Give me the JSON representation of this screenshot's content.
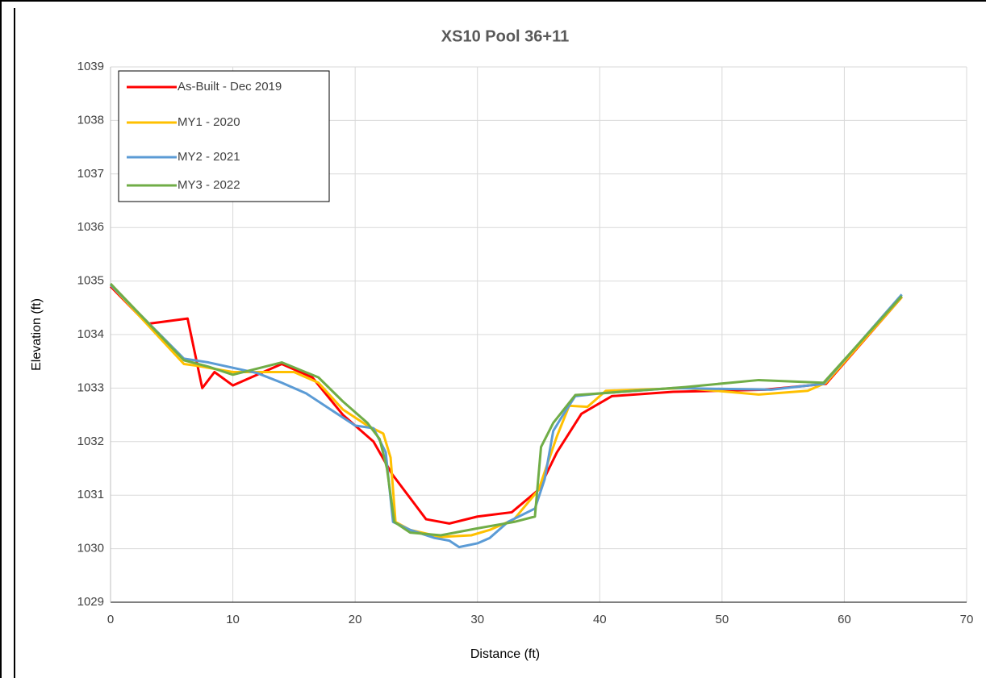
{
  "chart_data": {
    "type": "line",
    "title": "XS10 Pool 36+11",
    "xlabel": "Distance (ft)",
    "ylabel": "Elevation (ft)",
    "xlim": [
      0,
      70
    ],
    "xticks": [
      0,
      10,
      20,
      30,
      40,
      50,
      60,
      70
    ],
    "ylim": [
      1029,
      1039
    ],
    "yticks": [
      1029,
      1030,
      1031,
      1032,
      1033,
      1034,
      1035,
      1036,
      1037,
      1038,
      1039
    ],
    "grid": true,
    "legend": "upper left",
    "series": [
      {
        "name": "As-Built - Dec 2019",
        "color": "#ff0000",
        "x": [
          0,
          3,
          6.3,
          7.5,
          8.5,
          10,
          12,
          14,
          16.5,
          19,
          21.5,
          23,
          25.8,
          27.7,
          30,
          32.8,
          35,
          36.5,
          38.5,
          41,
          46,
          53.5,
          58.5,
          64.7
        ],
        "values": [
          1034.9,
          1034.2,
          1034.3,
          1033.0,
          1033.3,
          1033.05,
          1033.25,
          1033.45,
          1033.2,
          1032.5,
          1032.0,
          1031.4,
          1030.55,
          1030.47,
          1030.6,
          1030.68,
          1031.1,
          1031.8,
          1032.52,
          1032.85,
          1032.93,
          1032.97,
          1033.08,
          1034.7
        ]
      },
      {
        "name": "MY1 - 2020",
        "color": "#ffc000",
        "x": [
          0,
          6,
          7,
          10,
          15,
          17,
          19,
          21,
          22.3,
          22.9,
          23.3,
          24.5,
          27,
          29.5,
          31,
          33,
          35,
          36.5,
          37.5,
          39,
          40.5,
          47,
          53,
          57,
          58.5,
          64.7
        ],
        "values": [
          1034.93,
          1033.45,
          1033.42,
          1033.3,
          1033.3,
          1033.1,
          1032.6,
          1032.3,
          1032.15,
          1031.7,
          1030.5,
          1030.35,
          1030.22,
          1030.25,
          1030.35,
          1030.55,
          1031.1,
          1032.1,
          1032.67,
          1032.65,
          1032.95,
          1033.0,
          1032.88,
          1032.95,
          1033.1,
          1034.7
        ]
      },
      {
        "name": "MY2 - 2021",
        "color": "#5b9bd5",
        "x": [
          0,
          6,
          8,
          10,
          12,
          14,
          16,
          18,
          20,
          21.5,
          22.5,
          23.1,
          24.5,
          26.5,
          27.7,
          28.5,
          30,
          31,
          32.5,
          34.7,
          35.5,
          36.2,
          37,
          38,
          40,
          46,
          54,
          58.3,
          64.7
        ],
        "values": [
          1034.93,
          1033.55,
          1033.48,
          1033.38,
          1033.28,
          1033.1,
          1032.9,
          1032.6,
          1032.3,
          1032.25,
          1031.8,
          1030.5,
          1030.35,
          1030.2,
          1030.15,
          1030.03,
          1030.1,
          1030.2,
          1030.5,
          1030.75,
          1031.3,
          1032.2,
          1032.5,
          1032.85,
          1032.9,
          1033.0,
          1032.97,
          1033.08,
          1034.75
        ]
      },
      {
        "name": "MY3 - 2022",
        "color": "#70ad47",
        "x": [
          0,
          6,
          8,
          10,
          14,
          17,
          19,
          21,
          22,
          22.6,
          23.2,
          24.5,
          27,
          30,
          33,
          34.7,
          35.2,
          36.2,
          38,
          40,
          47,
          53,
          58.3,
          64.7
        ],
        "values": [
          1034.95,
          1033.52,
          1033.4,
          1033.25,
          1033.48,
          1033.2,
          1032.75,
          1032.35,
          1032.05,
          1031.5,
          1030.5,
          1030.3,
          1030.25,
          1030.38,
          1030.5,
          1030.6,
          1031.9,
          1032.35,
          1032.87,
          1032.9,
          1033.02,
          1033.15,
          1033.1,
          1034.72
        ]
      }
    ]
  }
}
